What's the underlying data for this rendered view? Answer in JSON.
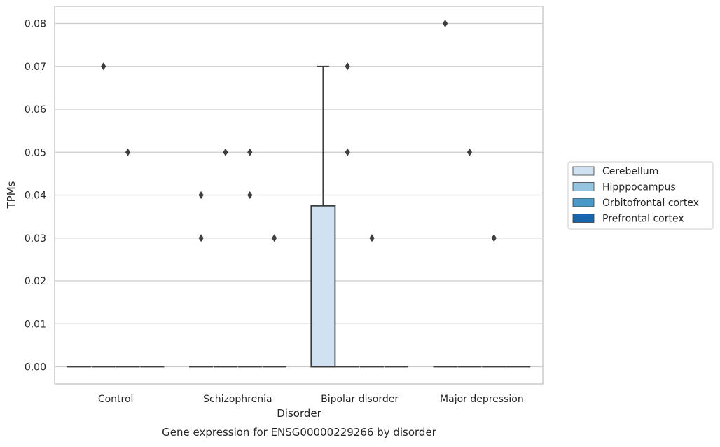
{
  "chart_data": {
    "type": "box",
    "title": "",
    "xlabel": "Disorder",
    "ylabel": "TPMs",
    "caption": "Gene expression for ENSG00000229266 by disorder",
    "categories": [
      "Control",
      "Schizophrenia",
      "Bipolar disorder",
      "Major depression"
    ],
    "ylim": [
      -0.004,
      0.084
    ],
    "yticks": [
      0.0,
      0.01,
      0.02,
      0.03,
      0.04,
      0.05,
      0.06,
      0.07,
      0.08
    ],
    "ytick_labels": [
      "0.00",
      "0.01",
      "0.02",
      "0.03",
      "0.04",
      "0.05",
      "0.06",
      "0.07",
      "0.08"
    ],
    "grid": true,
    "legend_placement": "right",
    "hue": [
      {
        "name": "Cerebellum",
        "color": "#d0e1f2"
      },
      {
        "name": "Hipppocampus",
        "color": "#94c4df"
      },
      {
        "name": "Orbitofrontal cortex",
        "color": "#4a98c9"
      },
      {
        "name": "Prefrontal cortex",
        "color": "#1764ab"
      }
    ],
    "boxes": [
      {
        "category": 0,
        "hue": 0,
        "q1": 0,
        "median": 0,
        "q3": 0,
        "whisker_low": 0,
        "whisker_high": 0,
        "outliers": []
      },
      {
        "category": 0,
        "hue": 1,
        "q1": 0,
        "median": 0,
        "q3": 0,
        "whisker_low": 0,
        "whisker_high": 0,
        "outliers": [
          0.07
        ]
      },
      {
        "category": 0,
        "hue": 2,
        "q1": 0,
        "median": 0,
        "q3": 0,
        "whisker_low": 0,
        "whisker_high": 0,
        "outliers": [
          0.05
        ]
      },
      {
        "category": 0,
        "hue": 3,
        "q1": 0,
        "median": 0,
        "q3": 0,
        "whisker_low": 0,
        "whisker_high": 0,
        "outliers": []
      },
      {
        "category": 1,
        "hue": 0,
        "q1": 0,
        "median": 0,
        "q3": 0,
        "whisker_low": 0,
        "whisker_high": 0,
        "outliers": [
          0.04,
          0.03
        ]
      },
      {
        "category": 1,
        "hue": 1,
        "q1": 0,
        "median": 0,
        "q3": 0,
        "whisker_low": 0,
        "whisker_high": 0,
        "outliers": [
          0.05
        ]
      },
      {
        "category": 1,
        "hue": 2,
        "q1": 0,
        "median": 0,
        "q3": 0,
        "whisker_low": 0,
        "whisker_high": 0,
        "outliers": [
          0.05,
          0.04
        ]
      },
      {
        "category": 1,
        "hue": 3,
        "q1": 0,
        "median": 0,
        "q3": 0,
        "whisker_low": 0,
        "whisker_high": 0,
        "outliers": [
          0.03
        ]
      },
      {
        "category": 2,
        "hue": 0,
        "q1": 0,
        "median": 0,
        "q3": 0.0375,
        "whisker_low": 0,
        "whisker_high": 0.07,
        "outliers": []
      },
      {
        "category": 2,
        "hue": 1,
        "q1": 0,
        "median": 0,
        "q3": 0,
        "whisker_low": 0,
        "whisker_high": 0,
        "outliers": [
          0.07,
          0.05
        ]
      },
      {
        "category": 2,
        "hue": 2,
        "q1": 0,
        "median": 0,
        "q3": 0,
        "whisker_low": 0,
        "whisker_high": 0,
        "outliers": [
          0.03
        ]
      },
      {
        "category": 2,
        "hue": 3,
        "q1": 0,
        "median": 0,
        "q3": 0,
        "whisker_low": 0,
        "whisker_high": 0,
        "outliers": []
      },
      {
        "category": 3,
        "hue": 0,
        "q1": 0,
        "median": 0,
        "q3": 0,
        "whisker_low": 0,
        "whisker_high": 0,
        "outliers": [
          0.08
        ]
      },
      {
        "category": 3,
        "hue": 1,
        "q1": 0,
        "median": 0,
        "q3": 0,
        "whisker_low": 0,
        "whisker_high": 0,
        "outliers": [
          0.05
        ]
      },
      {
        "category": 3,
        "hue": 2,
        "q1": 0,
        "median": 0,
        "q3": 0,
        "whisker_low": 0,
        "whisker_high": 0,
        "outliers": [
          0.03
        ]
      },
      {
        "category": 3,
        "hue": 3,
        "q1": 0,
        "median": 0,
        "q3": 0,
        "whisker_low": 0,
        "whisker_high": 0,
        "outliers": []
      }
    ],
    "colors": {
      "grid": "#cccccc",
      "frame": "#cccccc",
      "box_edge": "#3d3d3d",
      "text": "#262626",
      "legend_border": "#cccccc"
    }
  }
}
